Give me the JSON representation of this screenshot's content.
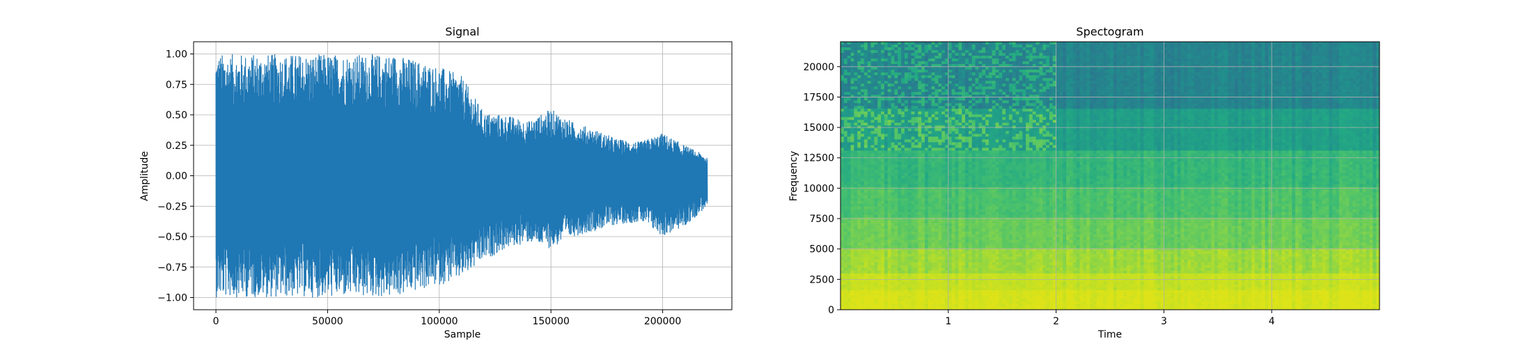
{
  "chart_data": [
    {
      "type": "line",
      "title": "Signal",
      "xlabel": "Sample",
      "ylabel": "Amplitude",
      "xlim": [
        -10000,
        231000
      ],
      "ylim": [
        -1.1,
        1.1
      ],
      "grid": true,
      "line_color": "#1f77b4",
      "x_ticks": [
        0,
        50000,
        100000,
        150000,
        200000
      ],
      "x_tick_labels": [
        "0",
        "50000",
        "100000",
        "150000",
        "200000"
      ],
      "y_ticks": [
        1.0,
        0.75,
        0.5,
        0.25,
        0.0,
        -0.25,
        -0.5,
        -0.75,
        -1.0
      ],
      "y_tick_labels": [
        "1.00",
        "0.75",
        "0.50",
        "0.25",
        "0.00",
        "−0.25",
        "−0.50",
        "−0.75",
        "−1.00"
      ],
      "series": [
        {
          "x": [
            0,
            10000,
            20000,
            30000,
            40000,
            50000,
            60000,
            70000,
            80000,
            90000,
            100000,
            110000,
            120000,
            130000,
            140000,
            150000,
            160000,
            170000,
            180000,
            190000,
            200000,
            210000,
            220000
          ],
          "upper": [
            1.0,
            1.0,
            1.0,
            1.0,
            1.0,
            1.0,
            1.0,
            1.0,
            1.0,
            0.95,
            0.9,
            0.82,
            0.52,
            0.5,
            0.45,
            0.55,
            0.44,
            0.38,
            0.3,
            0.28,
            0.35,
            0.25,
            0.16
          ],
          "lower": [
            -1.0,
            -1.0,
            -1.0,
            -1.0,
            -1.0,
            -1.0,
            -1.0,
            -1.0,
            -1.0,
            -0.95,
            -0.9,
            -0.85,
            -0.7,
            -0.6,
            -0.55,
            -0.6,
            -0.5,
            -0.45,
            -0.4,
            -0.38,
            -0.5,
            -0.42,
            -0.25
          ]
        }
      ]
    },
    {
      "type": "heatmap",
      "title": "Spectogram",
      "xlabel": "Time",
      "ylabel": "Frequency",
      "xlim": [
        0,
        5
      ],
      "ylim": [
        0,
        22050
      ],
      "grid": true,
      "x_ticks": [
        1,
        2,
        3,
        4
      ],
      "x_tick_labels": [
        "1",
        "2",
        "3",
        "4"
      ],
      "y_ticks": [
        0,
        2500,
        5000,
        7500,
        10000,
        12500,
        15000,
        17500,
        20000
      ],
      "y_tick_labels": [
        "0",
        "2500",
        "5000",
        "7500",
        "10000",
        "12500",
        "15000",
        "17500",
        "20000"
      ],
      "colormap": "viridis",
      "color_stops": [
        "#2a788e",
        "#21918c",
        "#22a884",
        "#44bf70",
        "#7ad151",
        "#bddf26",
        "#dde318"
      ],
      "frequency_bands": [
        {
          "from": 0,
          "to": 1500,
          "intensity": 0.97
        },
        {
          "from": 1500,
          "to": 3000,
          "intensity": 0.88
        },
        {
          "from": 3000,
          "to": 5000,
          "intensity": 0.76
        },
        {
          "from": 5000,
          "to": 7500,
          "intensity": 0.62
        },
        {
          "from": 7500,
          "to": 10000,
          "intensity": 0.52
        },
        {
          "from": 10000,
          "to": 13200,
          "intensity": 0.43
        },
        {
          "from": 13200,
          "to": 16500,
          "intensity": 0.26
        },
        {
          "from": 16500,
          "to": 22050,
          "intensity": 0.08
        }
      ]
    }
  ]
}
